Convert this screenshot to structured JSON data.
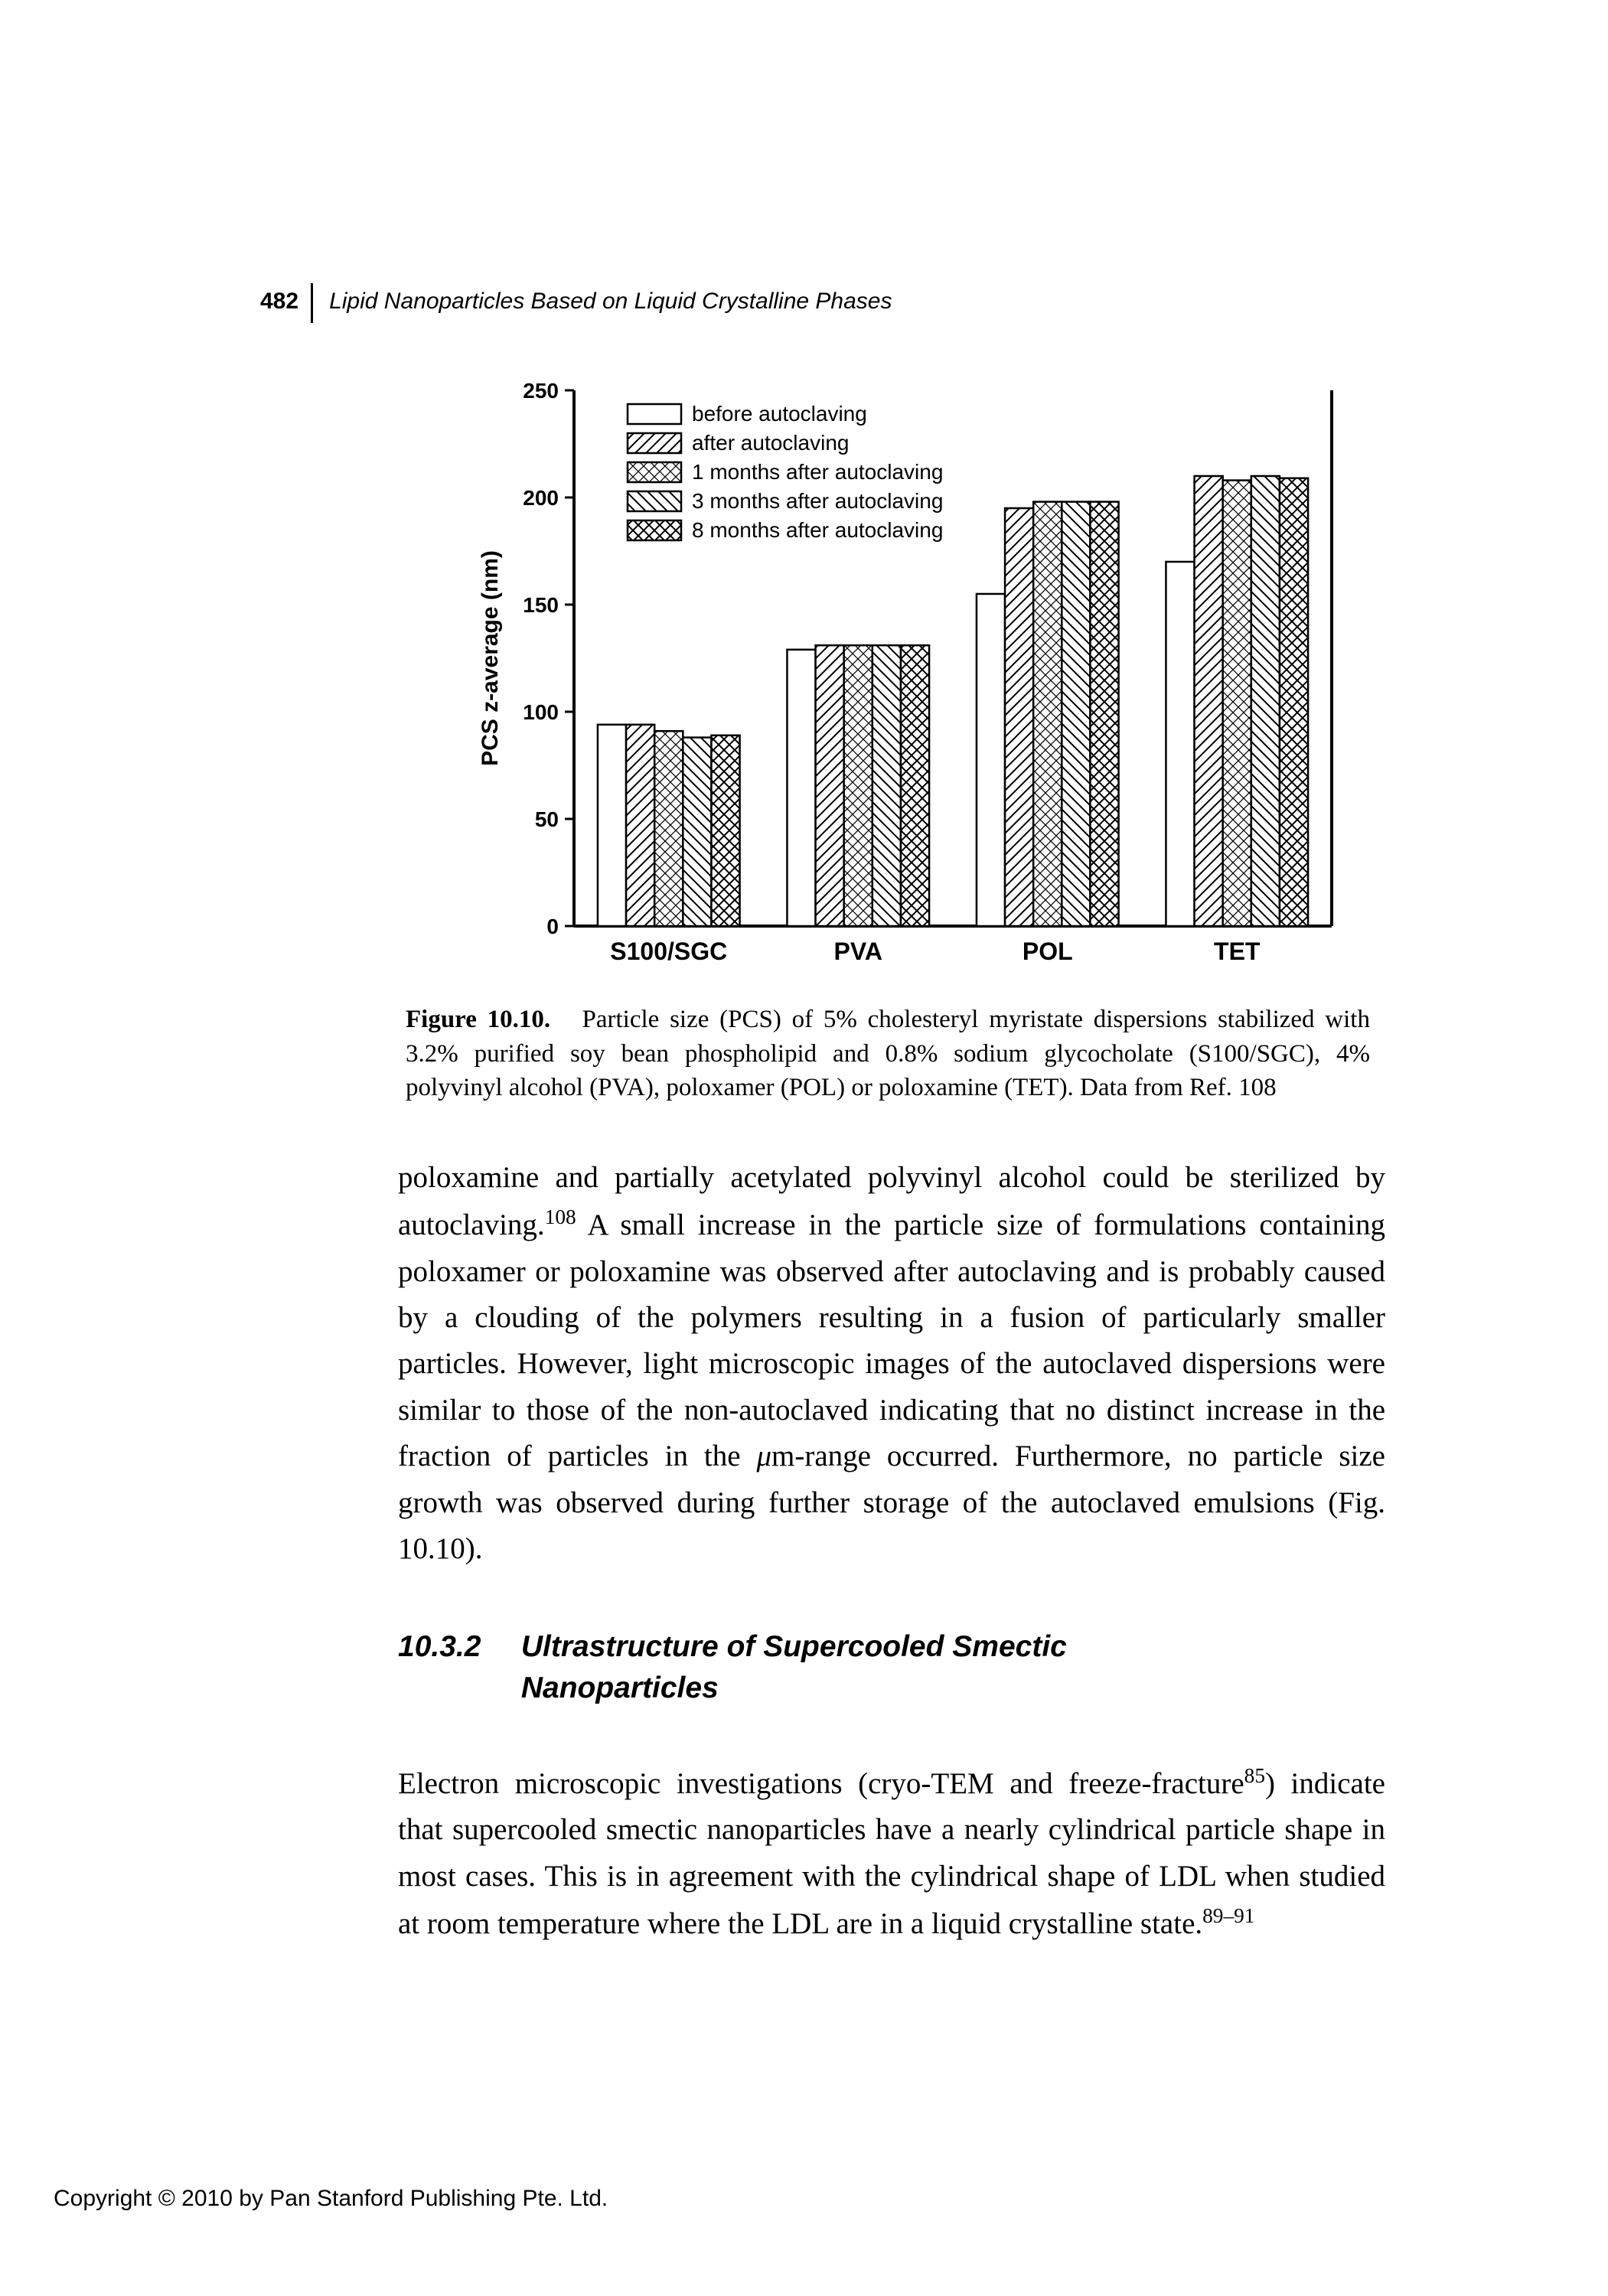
{
  "header": {
    "page_number": "482",
    "running_title": "Lipid Nanoparticles Based on Liquid Crystalline Phases"
  },
  "figure": {
    "type": "grouped-bar",
    "y_label": "PCS z-average (nm)",
    "ylim": [
      0,
      250
    ],
    "ytick_step": 50,
    "yticks": [
      0,
      50,
      100,
      150,
      200,
      250
    ],
    "categories": [
      "S100/SGC",
      "PVA",
      "POL",
      "TET"
    ],
    "series": [
      {
        "label": "before autoclaving",
        "pattern": "none",
        "values": [
          94,
          129,
          155,
          170
        ]
      },
      {
        "label": "after autoclaving",
        "pattern": "diag1",
        "values": [
          94,
          131,
          195,
          210
        ]
      },
      {
        "label": "1 months after autoclaving",
        "pattern": "cross",
        "values": [
          91,
          131,
          198,
          208
        ]
      },
      {
        "label": "3 months after autoclaving",
        "pattern": "diag2",
        "values": [
          88,
          131,
          198,
          210
        ]
      },
      {
        "label": "8 months after autoclaving",
        "pattern": "diamond",
        "values": [
          89,
          131,
          198,
          209
        ]
      }
    ],
    "bar_outline": "#000000",
    "plot_background": "#ffffff",
    "axis_color": "#000000",
    "tick_fontsize": 28,
    "label_fontsize": 30,
    "legend_fontsize": 28,
    "caption_label": "Figure 10.10.",
    "caption_text": "Particle size (PCS) of 5% cholesteryl myristate dispersions stabilized with 3.2% purified soy bean phospholipid and 0.8% sodium glycocholate (S100/SGC), 4% polyvinyl alcohol (PVA), poloxamer (POL) or poloxamine (TET). Data from Ref. 108"
  },
  "body": {
    "para1_a": "poloxamine and partially acetylated polyvinyl alcohol could be sterilized by autoclaving.",
    "para1_sup1": "108",
    "para1_b": " A small increase in the particle size of formulations containing poloxamer or poloxamine was observed after autoclaving and is probably caused by a clouding of the polymers resulting in a fusion of particularly smaller particles. However, light microscopic images of the autoclaved dispersions were similar to those of the non-autoclaved indicating that no distinct increase in the fraction of particles in the ",
    "para1_mu": "μ",
    "para1_c": "m-range occurred. Furthermore, no particle size growth was observed during further storage of the autoclaved emulsions (Fig. 10.10)."
  },
  "section": {
    "number": "10.3.2",
    "title_line1": "Ultrastructure of Supercooled Smectic",
    "title_line2": "Nanoparticles"
  },
  "body2": {
    "a": "Electron microscopic investigations (cryo-TEM and freeze-fracture",
    "sup1": "85",
    "b": ") indicate that supercooled smectic nanoparticles have a nearly cylindrical particle shape in most cases. This is in agreement with the cylindrical shape of LDL when studied at room temperature where the LDL are in a liquid crystalline state.",
    "sup2": "89–91"
  },
  "copyright": "Copyright © 2010 by Pan Stanford Publishing Pte. Ltd."
}
